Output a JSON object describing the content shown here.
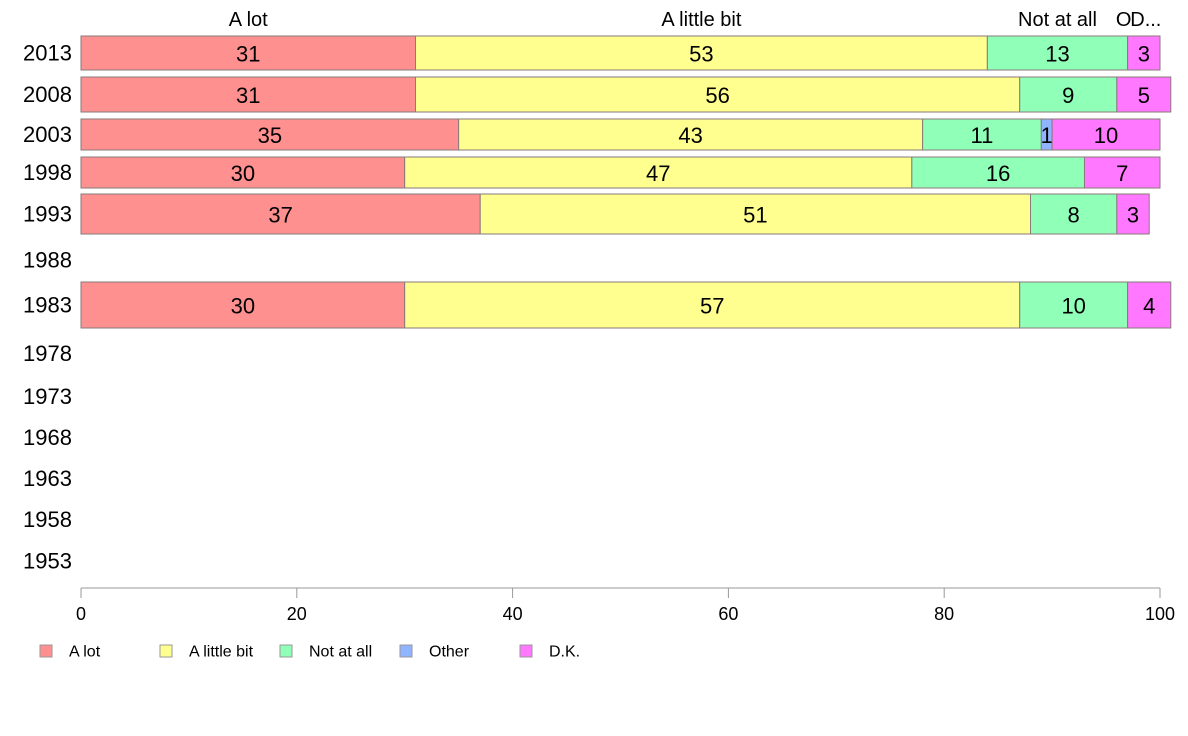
{
  "chart_data": {
    "type": "bar",
    "orientation": "horizontal",
    "stacked": true,
    "title": "",
    "xlabel": "",
    "ylabel": "",
    "xlim": [
      0,
      100
    ],
    "x_ticks": [
      0,
      20,
      40,
      60,
      80,
      100
    ],
    "grid": false,
    "legend_position": "bottom-left",
    "categories": [
      "2013",
      "2008",
      "2003",
      "1998",
      "1993",
      "1988",
      "1983",
      "1978",
      "1973",
      "1968",
      "1963",
      "1958",
      "1953"
    ],
    "series": [
      {
        "name": "A lot",
        "color": "#ff9090",
        "values": [
          31,
          31,
          35,
          30,
          37,
          null,
          30,
          null,
          null,
          null,
          null,
          null,
          null
        ]
      },
      {
        "name": "A little bit",
        "color": "#ffff90",
        "values": [
          53,
          56,
          43,
          47,
          51,
          null,
          57,
          null,
          null,
          null,
          null,
          null,
          null
        ]
      },
      {
        "name": "Not at all",
        "color": "#90ffb8",
        "values": [
          13,
          9,
          11,
          16,
          8,
          null,
          10,
          null,
          null,
          null,
          null,
          null,
          null
        ]
      },
      {
        "name": "Other",
        "color": "#90b4ff",
        "values": [
          0,
          0,
          1,
          0,
          0,
          null,
          0,
          null,
          null,
          null,
          null,
          null,
          null
        ]
      },
      {
        "name": "D.K.",
        "color": "#ff78ff",
        "values": [
          3,
          5,
          10,
          7,
          3,
          null,
          4,
          null,
          null,
          null,
          null,
          null,
          null
        ]
      }
    ],
    "top_labels": [
      "A lot",
      "A little bit",
      "Not at all",
      "O",
      "D..."
    ]
  }
}
